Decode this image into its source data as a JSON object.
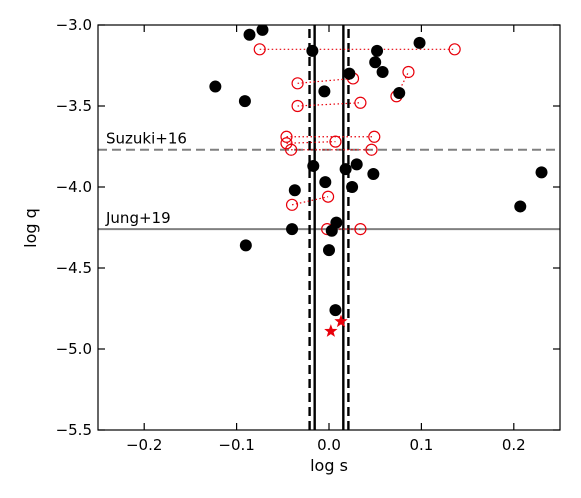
{
  "chart_data": {
    "type": "scatter",
    "xlabel": "log s",
    "ylabel": "log q",
    "xlim": [
      -0.25,
      0.25
    ],
    "ylim": [
      -5.5,
      -3.0
    ],
    "x_ticks": [
      -0.2,
      -0.1,
      0.0,
      0.1,
      0.2
    ],
    "x_tick_labels": [
      "−0.2",
      "−0.1",
      "0.0",
      "0.1",
      "0.2"
    ],
    "y_ticks": [
      -5.5,
      -5.0,
      -4.5,
      -4.0,
      -3.5,
      -3.0
    ],
    "y_tick_labels": [
      "−5.5",
      "−5.0",
      "−4.5",
      "−4.0",
      "−3.5",
      "−3.0"
    ],
    "grid": false,
    "reference_lines": [
      {
        "label": "Suzuki+16",
        "y": -3.77,
        "style": "dashed",
        "color": "#808080"
      },
      {
        "label": "Jung+19",
        "y": -4.26,
        "style": "solid",
        "color": "#808080"
      }
    ],
    "black_points": [
      [
        -0.123,
        -3.38
      ],
      [
        -0.091,
        -3.47
      ],
      [
        -0.086,
        -3.06
      ],
      [
        -0.072,
        -3.03
      ],
      [
        -0.09,
        -4.36
      ],
      [
        -0.037,
        -4.02
      ],
      [
        -0.04,
        -4.26
      ],
      [
        -0.018,
        -3.16
      ],
      [
        -0.017,
        -3.87
      ],
      [
        -0.005,
        -3.41
      ],
      [
        -0.004,
        -3.97
      ],
      [
        0.0,
        -4.39
      ],
      [
        0.008,
        -4.22
      ],
      [
        0.007,
        -4.76
      ],
      [
        0.003,
        -4.27
      ],
      [
        0.022,
        -3.3
      ],
      [
        0.018,
        -3.89
      ],
      [
        0.025,
        -4.0
      ],
      [
        0.03,
        -3.86
      ],
      [
        0.048,
        -3.92
      ],
      [
        0.05,
        -3.23
      ],
      [
        0.052,
        -3.16
      ],
      [
        0.058,
        -3.29
      ],
      [
        0.076,
        -3.42
      ],
      [
        0.098,
        -3.11
      ],
      [
        0.207,
        -4.12
      ],
      [
        0.23,
        -3.91
      ]
    ],
    "red_open_pairs": [
      [
        [
          -0.075,
          -3.15
        ],
        [
          0.136,
          -3.15
        ]
      ],
      [
        [
          -0.034,
          -3.36
        ],
        [
          0.026,
          -3.33
        ]
      ],
      [
        [
          -0.034,
          -3.5
        ],
        [
          0.034,
          -3.48
        ]
      ],
      [
        [
          -0.046,
          -3.69
        ],
        [
          0.049,
          -3.69
        ]
      ],
      [
        [
          -0.046,
          -3.73
        ],
        [
          0.007,
          -3.72
        ]
      ],
      [
        [
          -0.041,
          -3.77
        ],
        [
          0.046,
          -3.77
        ]
      ],
      [
        [
          -0.04,
          -4.11
        ],
        [
          -0.001,
          -4.06
        ]
      ],
      [
        [
          -0.002,
          -4.26
        ],
        [
          0.034,
          -4.26
        ]
      ],
      [
        [
          0.073,
          -3.44
        ],
        [
          0.086,
          -3.29
        ]
      ]
    ],
    "red_stars": [
      [
        0.002,
        -4.89
      ],
      [
        0.013,
        -4.83
      ]
    ],
    "boundary_curves": {
      "solid": {
        "base_s": 0.0155,
        "coef": 0.76,
        "exponent_scale": 0.32
      },
      "dashed": {
        "base_s": 0.021,
        "coef": 2.72,
        "exponent_scale": 0.31
      }
    }
  }
}
